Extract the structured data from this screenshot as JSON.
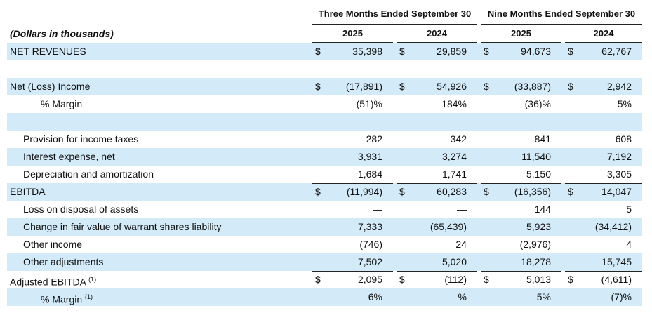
{
  "header": {
    "groups": [
      "Three Months Ended September 30",
      "Nine Months Ended September 30"
    ],
    "units": "(Dollars in thousands)",
    "years": [
      "2025",
      "2024",
      "2025",
      "2024"
    ]
  },
  "table": {
    "rows": [
      {
        "label": "NET REVENUES",
        "currency": "$",
        "cells": [
          "35,398",
          "29,859",
          "94,673",
          "62,767"
        ]
      },
      {
        "label": "Net (Loss) Income",
        "currency": "$",
        "cells": [
          "(17,891)",
          "54,926",
          "(33,887)",
          "2,942"
        ]
      },
      {
        "label": "% Margin",
        "cells": [
          "(51)%",
          "184%",
          "(36)%",
          "5%"
        ]
      },
      {
        "label": "Provision for income taxes",
        "cells": [
          "282",
          "342",
          "841",
          "608"
        ]
      },
      {
        "label": "Interest expense, net",
        "cells": [
          "3,931",
          "3,274",
          "11,540",
          "7,192"
        ]
      },
      {
        "label": "Depreciation and amortization",
        "cells": [
          "1,684",
          "1,741",
          "5,150",
          "3,305"
        ]
      },
      {
        "label": "EBITDA",
        "currency": "$",
        "cells": [
          "(11,994)",
          "60,283",
          "(16,356)",
          "14,047"
        ]
      },
      {
        "label": "Loss on disposal of assets",
        "cells": [
          "—",
          "—",
          "144",
          "5"
        ]
      },
      {
        "label": "Change in fair value of warrant shares liability",
        "cells": [
          "7,333",
          "(65,439)",
          "5,923",
          "(34,412)"
        ]
      },
      {
        "label": "Other income",
        "cells": [
          "(746)",
          "24",
          "(2,976)",
          "4"
        ]
      },
      {
        "label": "Other adjustments",
        "cells": [
          "7,502",
          "5,020",
          "18,278",
          "15,745"
        ]
      },
      {
        "label": "Adjusted EBITDA",
        "footnote": "(1)",
        "currency": "$",
        "cells": [
          "2,095",
          "(112)",
          "5,013",
          "(4,611)"
        ]
      },
      {
        "label": "% Margin",
        "footnote": "(1)",
        "cells": [
          "6%",
          "—%",
          "5%",
          "(7)%"
        ]
      }
    ]
  }
}
